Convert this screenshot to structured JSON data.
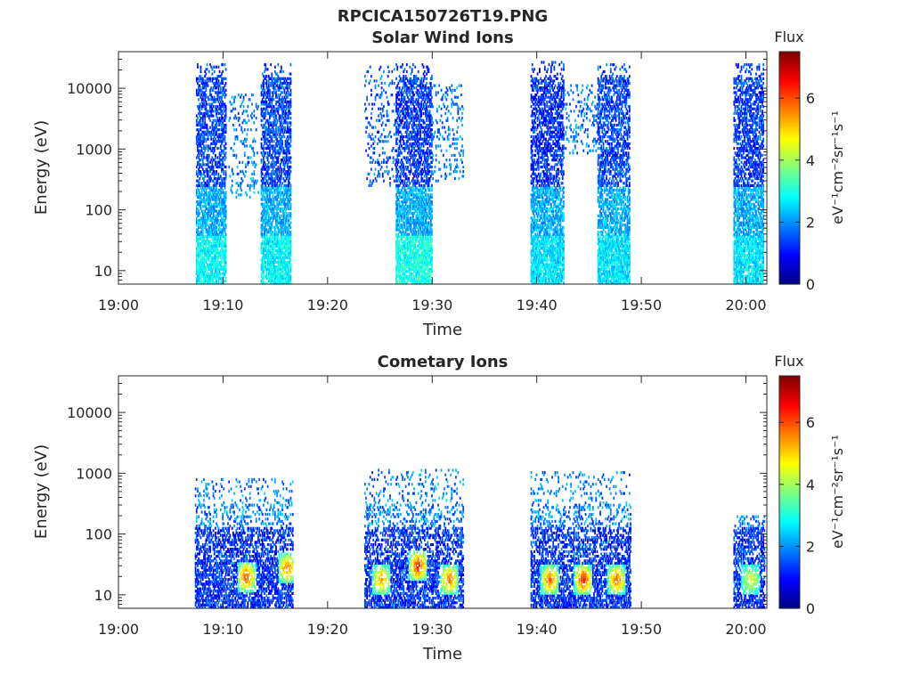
{
  "figure": {
    "title": "RPCICA150726T19.PNG"
  },
  "colormap": "jet",
  "chart_data": [
    {
      "type": "heatmap",
      "title": "Solar Wind Ions",
      "xlabel": "Time",
      "ylabel": "Energy (eV)",
      "y_scale": "log",
      "xlim": [
        "19:00",
        "20:02"
      ],
      "ylim": [
        6,
        40000
      ],
      "x_tick_labels": [
        "19:00",
        "19:10",
        "19:20",
        "19:30",
        "19:40",
        "19:50",
        "20:00"
      ],
      "y_tick_labels": [
        "10",
        "100",
        "1000",
        "10000"
      ],
      "colorbar": {
        "title": "Flux",
        "label": "eV⁻¹cm⁻²sr⁻¹s⁻¹",
        "range": [
          0,
          7.5
        ],
        "tick_labels": [
          "0",
          "2",
          "4",
          "6"
        ]
      },
      "blocks": [
        {
          "start": "19:07.4",
          "end": "19:10.3",
          "emin": 6,
          "emax": 25000,
          "base": 1.2,
          "low_energy_peak": 3.2
        },
        {
          "start": "19:10.5",
          "end": "19:13.4",
          "emin": 150,
          "emax": 8000,
          "base": 1.6,
          "low_energy_peak": 1.6,
          "sparse": true
        },
        {
          "start": "19:13.6",
          "end": "19:16.5",
          "emin": 6,
          "emax": 25000,
          "base": 1.2,
          "low_energy_peak": 3.2
        },
        {
          "start": "19:23.5",
          "end": "19:26.5",
          "emin": 250,
          "emax": 25000,
          "base": 1.4,
          "low_energy_peak": 1.4,
          "sparse": true
        },
        {
          "start": "19:26.5",
          "end": "19:30.0",
          "emin": 6,
          "emax": 25000,
          "base": 1.1,
          "low_energy_peak": 3.4
        },
        {
          "start": "19:30.0",
          "end": "19:33.0",
          "emin": 300,
          "emax": 12000,
          "base": 1.6,
          "low_energy_peak": 1.6,
          "sparse": true
        },
        {
          "start": "19:39.4",
          "end": "19:42.6",
          "emin": 6,
          "emax": 28000,
          "base": 1.0,
          "low_energy_peak": 3.0
        },
        {
          "start": "19:42.6",
          "end": "19:45.8",
          "emin": 800,
          "emax": 12000,
          "base": 1.6,
          "low_energy_peak": 1.6,
          "sparse": true
        },
        {
          "start": "19:45.8",
          "end": "19:48.9",
          "emin": 6,
          "emax": 25000,
          "base": 1.2,
          "low_energy_peak": 3.0
        },
        {
          "start": "19:58.8",
          "end": "20:01.7",
          "emin": 6,
          "emax": 25000,
          "base": 1.1,
          "low_energy_peak": 3.0
        }
      ]
    },
    {
      "type": "heatmap",
      "title": "Cometary Ions",
      "xlabel": "Time",
      "ylabel": "Energy (eV)",
      "y_scale": "log",
      "xlim": [
        "19:00",
        "20:02"
      ],
      "ylim": [
        6,
        40000
      ],
      "x_tick_labels": [
        "19:00",
        "19:10",
        "19:20",
        "19:30",
        "19:40",
        "19:50",
        "20:00"
      ],
      "y_tick_labels": [
        "10",
        "100",
        "1000",
        "10000"
      ],
      "colorbar": {
        "title": "Flux",
        "label": "eV⁻¹cm⁻²sr⁻¹s⁻¹",
        "range": [
          0,
          7.5
        ],
        "tick_labels": [
          "0",
          "2",
          "4",
          "6"
        ]
      },
      "blocks": [
        {
          "start": "19:07.3",
          "end": "19:16.7",
          "emin": 6,
          "emax": 800,
          "base": 1.3
        },
        {
          "start": "19:23.5",
          "end": "19:33.0",
          "emin": 6,
          "emax": 1200,
          "base": 1.3
        },
        {
          "start": "19:39.4",
          "end": "19:49.0",
          "emin": 6,
          "emax": 1100,
          "base": 1.3
        },
        {
          "start": "19:58.8",
          "end": "20:01.8",
          "emin": 6,
          "emax": 200,
          "base": 1.3
        }
      ],
      "hotspots": [
        {
          "t": "19:12.2",
          "e": 20,
          "peak": 6.2
        },
        {
          "t": "19:16.1",
          "e": 28,
          "peak": 5.8
        },
        {
          "t": "19:25.1",
          "e": 18,
          "peak": 5.6
        },
        {
          "t": "19:28.6",
          "e": 30,
          "peak": 6.6
        },
        {
          "t": "19:31.6",
          "e": 18,
          "peak": 6.0
        },
        {
          "t": "19:41.2",
          "e": 18,
          "peak": 6.0
        },
        {
          "t": "19:44.4",
          "e": 18,
          "peak": 6.6
        },
        {
          "t": "19:47.6",
          "e": 18,
          "peak": 6.0
        },
        {
          "t": "20:00.4",
          "e": 18,
          "peak": 4.6
        }
      ]
    }
  ]
}
